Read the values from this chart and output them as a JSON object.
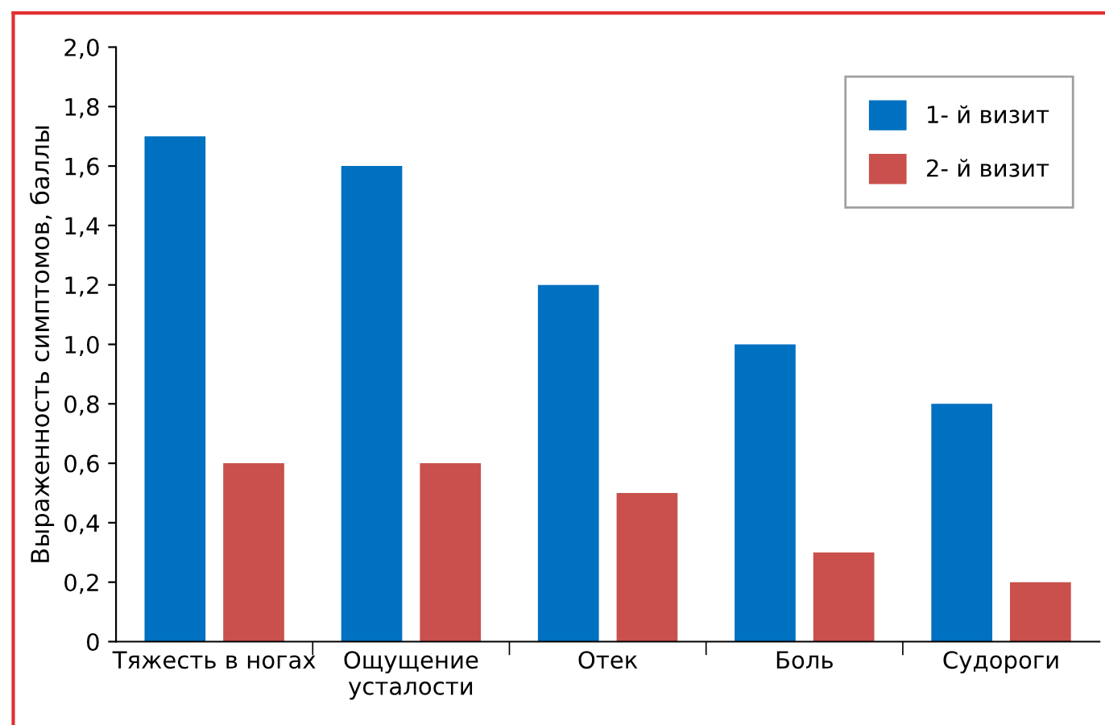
{
  "chart_data": {
    "type": "bar",
    "ylabel": "Выраженность симптомов, баллы",
    "categories": [
      "Тяжесть в ногах",
      "Ощущение\nусталости",
      "Отек",
      "Боль",
      "Судороги"
    ],
    "series": [
      {
        "name": "1- й визит",
        "color": "#0070c0",
        "values": [
          1.7,
          1.6,
          1.2,
          1.0,
          0.8
        ]
      },
      {
        "name": "2- й визит",
        "color": "#c9504c",
        "values": [
          0.6,
          0.6,
          0.5,
          0.3,
          0.2
        ]
      }
    ],
    "ylim": [
      0,
      2.0
    ],
    "yticks": [
      0,
      {
        "value": 0.2,
        "label": "0,2"
      },
      {
        "value": 0.4,
        "label": "0,4"
      },
      {
        "value": 0.6,
        "label": "0,6"
      },
      {
        "value": 0.8,
        "label": "0,8"
      },
      {
        "value": 1.0,
        "label": "1,0"
      },
      {
        "value": 1.2,
        "label": "1,2"
      },
      {
        "value": 1.4,
        "label": "1,4"
      },
      {
        "value": 1.6,
        "label": "1,6"
      },
      {
        "value": 1.8,
        "label": "1,8"
      },
      {
        "value": 2.0,
        "label": "2,0"
      }
    ],
    "grid": false,
    "legend": "top right"
  }
}
